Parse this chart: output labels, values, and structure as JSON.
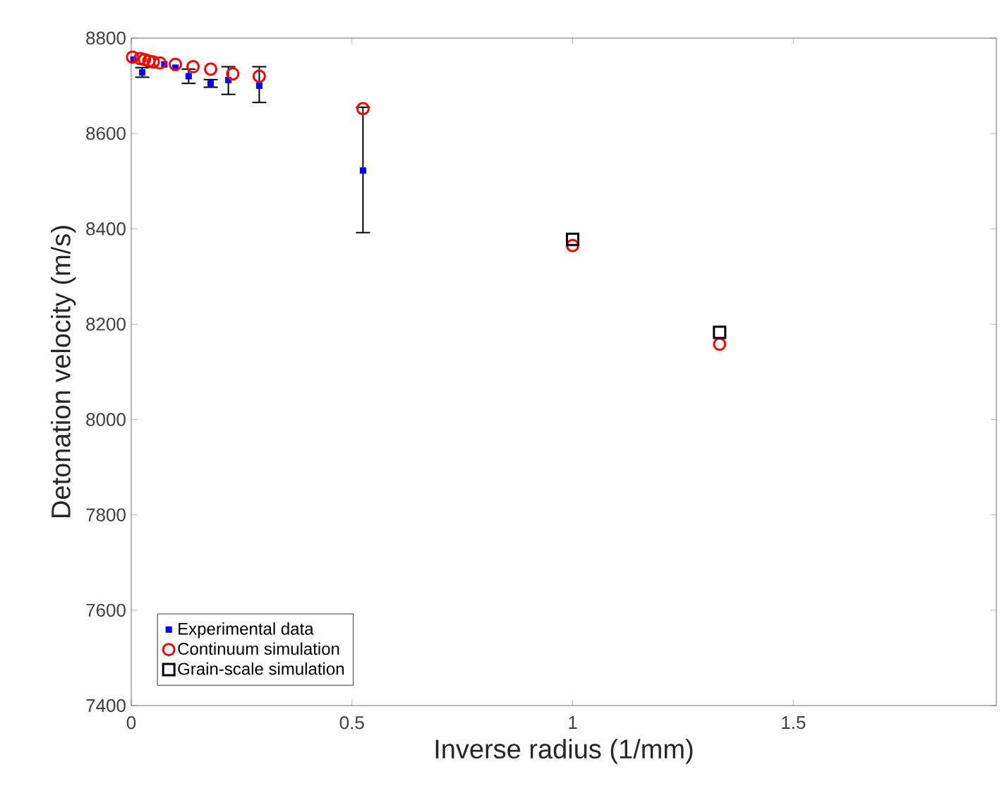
{
  "chart_data": {
    "type": "scatter",
    "xlabel": "Inverse radius (1/mm)",
    "ylabel": "Detonation velocity (m/s)",
    "xlim": [
      0,
      1.96
    ],
    "ylim": [
      7400,
      8800
    ],
    "xticks": [
      0,
      0.5,
      1,
      1.5
    ],
    "yticks": [
      7400,
      7600,
      7800,
      8000,
      8200,
      8400,
      8600,
      8800
    ],
    "grid": false,
    "legend": "bottom left",
    "series": [
      {
        "name": "Experimental data",
        "color": "#0000ff",
        "marker": "square",
        "x": [
          0.005,
          0.025,
          0.05,
          0.075,
          0.1,
          0.13,
          0.18,
          0.22,
          0.29,
          0.525
        ],
        "values": [
          8755,
          8728,
          null,
          8745,
          8738,
          8720,
          8705,
          8712,
          8700,
          8522
        ],
        "errors": [
          null,
          [
            8718,
            8738
          ],
          null,
          null,
          null,
          [
            8705,
            8735
          ],
          [
            8697,
            8713
          ],
          [
            8682,
            8740
          ],
          [
            8665,
            8740
          ],
          [
            8392,
            8655
          ]
        ]
      },
      {
        "name": "Continuum simulation",
        "color": "#ff0000",
        "marker": "circle",
        "x": [
          0.003,
          0.02,
          0.03,
          0.04,
          0.05,
          0.065,
          0.1,
          0.14,
          0.18,
          0.23,
          0.29,
          0.525,
          1,
          1.333
        ],
        "values": [
          8760,
          8757,
          8755,
          8752,
          8750,
          8748,
          8745,
          8740,
          8735,
          8725,
          8720,
          8652,
          8365,
          8158
        ]
      },
      {
        "name": "Grain-scale simulation",
        "color": "#000000",
        "marker": "square",
        "x": [
          1,
          1.333
        ],
        "values": [
          8378,
          8183
        ]
      }
    ]
  }
}
